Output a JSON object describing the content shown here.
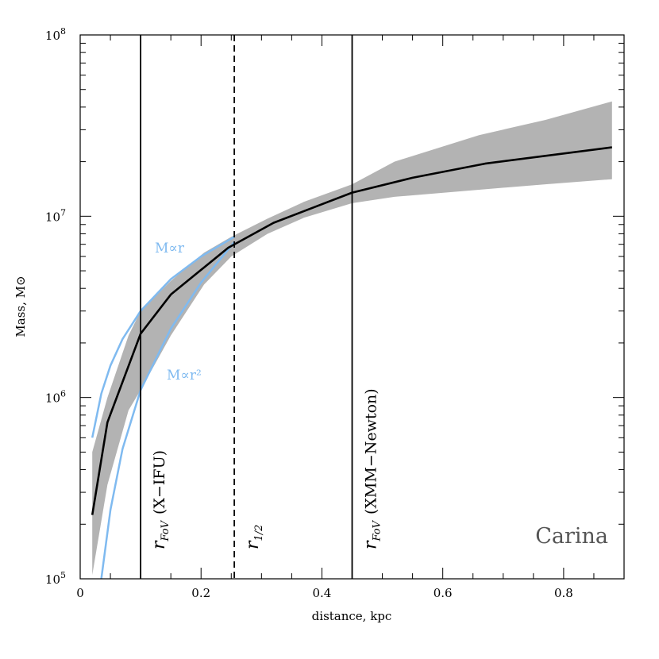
{
  "chart_data": {
    "type": "line",
    "title": "",
    "xlabel": "distance, kpc",
    "ylabel": "Mass, M⊙",
    "xlim": [
      0,
      0.9
    ],
    "ylim": [
      100000,
      100000000
    ],
    "yscale": "log",
    "grid": false,
    "annotation_text": "Carina",
    "x_ticks": [
      {
        "value": 0,
        "label": "0"
      },
      {
        "value": 0.2,
        "label": "0.2"
      },
      {
        "value": 0.4,
        "label": "0.4"
      },
      {
        "value": 0.6,
        "label": "0.6"
      },
      {
        "value": 0.8,
        "label": "0.8"
      }
    ],
    "y_ticks": [
      {
        "value": 100000,
        "base": "10",
        "exp": "5"
      },
      {
        "value": 1000000,
        "base": "10",
        "exp": "6"
      },
      {
        "value": 10000000,
        "base": "10",
        "exp": "7"
      },
      {
        "value": 100000000,
        "base": "10",
        "exp": "8"
      }
    ],
    "series": [
      {
        "name": "",
        "kind": "median",
        "color": "#000000",
        "x": [
          0.02,
          0.045,
          0.1,
          0.15,
          0.245,
          0.32,
          0.45,
          0.55,
          0.67,
          0.88
        ],
        "y": [
          225000,
          730000,
          2250000,
          3700000,
          6700000,
          9200000,
          13500000,
          16300000,
          19500000,
          24000000
        ]
      },
      {
        "name": "",
        "kind": "band",
        "color": "#b3b3b3",
        "x": [
          0.02,
          0.045,
          0.08,
          0.1,
          0.15,
          0.205,
          0.25,
          0.31,
          0.37,
          0.45,
          0.52,
          0.66,
          0.77,
          0.88
        ],
        "upper": [
          500000,
          1000000,
          2200000,
          3000000,
          4400000,
          6300000,
          7700000,
          9700000,
          12000000,
          15000000,
          20000000,
          28000000,
          34000000,
          43000000
        ],
        "lower": [
          105000,
          330000,
          850000,
          1100000,
          2200000,
          4200000,
          6000000,
          8000000,
          9800000,
          11800000,
          12800000,
          14000000,
          15000000,
          16000000
        ]
      },
      {
        "name": "M∝r",
        "kind": "model",
        "color": "#7fbaf0",
        "x": [
          0.02,
          0.035,
          0.05,
          0.07,
          0.1,
          0.15,
          0.2,
          0.255
        ],
        "y": [
          600000,
          1050000,
          1500000,
          2100000,
          3000000,
          4500000,
          6000000,
          7700000
        ]
      },
      {
        "name": "M∝r²",
        "kind": "model",
        "color": "#7fbaf0",
        "x": [
          0.035,
          0.05,
          0.07,
          0.1,
          0.15,
          0.2,
          0.255
        ],
        "y": [
          100000,
          240000,
          520000,
          1100000,
          2400000,
          4300000,
          7200000
        ]
      }
    ],
    "vlines": [
      {
        "x": 0.1,
        "style": "solid",
        "label_main": "r",
        "label_sub": "FoV",
        "label_rest": "(X−IFU)"
      },
      {
        "x": 0.255,
        "style": "dashed",
        "label_main": "r",
        "label_sub": "1/2",
        "label_rest": ""
      },
      {
        "x": 0.45,
        "style": "solid",
        "label_main": "r",
        "label_sub": "FoV",
        "label_rest": "(XMM−Newton)"
      }
    ]
  }
}
